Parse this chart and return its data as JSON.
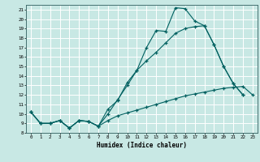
{
  "xlabel": "Humidex (Indice chaleur)",
  "xlim_min": -0.5,
  "xlim_max": 23.5,
  "ylim_min": 8,
  "ylim_max": 21.5,
  "xticks": [
    0,
    1,
    2,
    3,
    4,
    5,
    6,
    7,
    8,
    9,
    10,
    11,
    12,
    13,
    14,
    15,
    16,
    17,
    18,
    19,
    20,
    21,
    22,
    23
  ],
  "yticks": [
    8,
    9,
    10,
    11,
    12,
    13,
    14,
    15,
    16,
    17,
    18,
    19,
    20,
    21
  ],
  "bg_color": "#c8e8e4",
  "grid_color": "#ffffff",
  "line_color": "#006060",
  "line1_x": [
    0,
    1,
    2,
    3,
    4,
    5,
    6,
    7,
    8,
    9,
    10,
    11,
    12,
    13,
    14,
    15,
    16,
    17,
    18,
    19,
    20,
    21,
    22
  ],
  "line1_y": [
    10.2,
    9.0,
    9.0,
    9.3,
    8.5,
    9.3,
    9.2,
    8.7,
    10.0,
    11.5,
    13.0,
    14.6,
    17.0,
    18.8,
    18.7,
    21.2,
    21.1,
    19.8,
    19.3,
    17.3,
    15.0,
    13.2,
    12.0
  ],
  "line2_x": [
    0,
    1,
    2,
    3,
    4,
    5,
    6,
    7,
    8,
    9,
    10,
    11,
    12,
    13,
    14,
    15,
    16,
    17,
    18,
    19,
    20,
    21,
    22
  ],
  "line2_y": [
    10.2,
    9.0,
    9.0,
    9.3,
    8.5,
    9.3,
    9.2,
    8.7,
    10.5,
    11.4,
    13.3,
    14.6,
    15.6,
    16.5,
    17.5,
    18.5,
    19.0,
    19.2,
    19.3,
    17.3,
    15.0,
    13.2,
    12.0
  ],
  "line3_x": [
    0,
    1,
    2,
    3,
    4,
    5,
    6,
    7,
    8,
    9,
    10,
    11,
    12,
    13,
    14,
    15,
    16,
    17,
    18,
    19,
    20,
    21,
    22,
    23
  ],
  "line3_y": [
    10.2,
    9.0,
    9.0,
    9.3,
    8.5,
    9.3,
    9.2,
    8.7,
    9.3,
    9.8,
    10.1,
    10.4,
    10.7,
    11.0,
    11.3,
    11.6,
    11.9,
    12.1,
    12.3,
    12.5,
    12.7,
    12.8,
    12.9,
    12.0
  ]
}
